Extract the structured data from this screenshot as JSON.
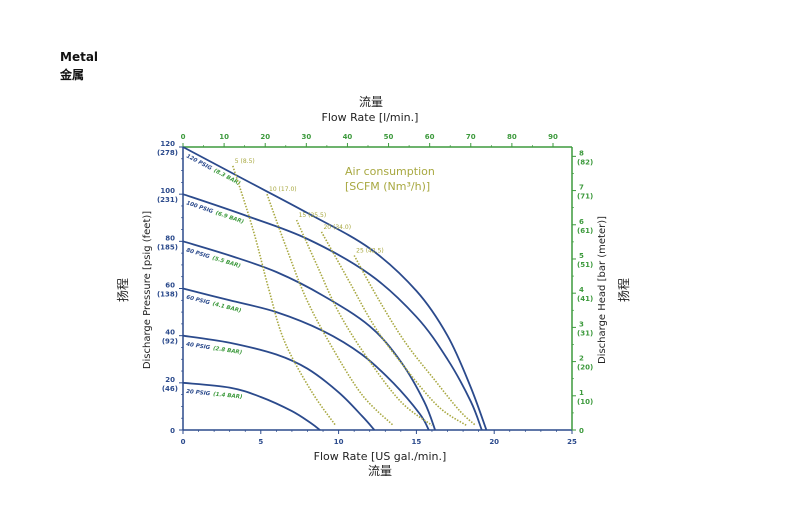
{
  "header": {
    "title_en": "Metal",
    "title_zh": "金属"
  },
  "chart_data": {
    "type": "line",
    "top_axis": {
      "cn_label": "流量",
      "label": "Flow Rate  [l/min.]",
      "ticks": [
        "0",
        "10",
        "20",
        "30",
        "40",
        "50",
        "60",
        "70",
        "80",
        "90"
      ],
      "tick_values": [
        0,
        10,
        20,
        30,
        40,
        50,
        60,
        70,
        80,
        90
      ],
      "color": "#3d9a3d"
    },
    "bottom_axis": {
      "label": "Flow Rate [US gal./min.]",
      "cn_label": "流量",
      "ticks": [
        "0",
        "5",
        "10",
        "15",
        "20",
        "25"
      ],
      "tick_values": [
        0,
        5,
        10,
        15,
        20,
        25
      ],
      "xlim": [
        0,
        25
      ]
    },
    "left_axis": {
      "label": "Discharge Pressure [psig (feet)]",
      "cn_label": "扬程",
      "ylim": [
        0,
        120
      ],
      "ticks": [
        {
          "value": 0,
          "main": "0",
          "sub": ""
        },
        {
          "value": 20,
          "main": "20",
          "sub": "(46)"
        },
        {
          "value": 40,
          "main": "40",
          "sub": "(92)"
        },
        {
          "value": 60,
          "main": "60",
          "sub": "(138)"
        },
        {
          "value": 80,
          "main": "80",
          "sub": "(185)"
        },
        {
          "value": 100,
          "main": "100",
          "sub": "(231)"
        },
        {
          "value": 120,
          "main": "120",
          "sub": "(278)"
        }
      ]
    },
    "right_axis": {
      "label": "Discharge Head [bar (meter)]",
      "cn_label": "扬程",
      "color": "#3d9a3d",
      "ticks": [
        {
          "value": 0,
          "main": "0",
          "sub": ""
        },
        {
          "value": 1,
          "main": "1",
          "sub": "(10)"
        },
        {
          "value": 2,
          "main": "2",
          "sub": "(20)"
        },
        {
          "value": 3,
          "main": "3",
          "sub": "(31)"
        },
        {
          "value": 4,
          "main": "4",
          "sub": "(41)"
        },
        {
          "value": 5,
          "main": "5",
          "sub": "(51)"
        },
        {
          "value": 6,
          "main": "6",
          "sub": "(61)"
        },
        {
          "value": 7,
          "main": "7",
          "sub": "(71)"
        },
        {
          "value": 8,
          "main": "8",
          "sub": "(82)"
        }
      ]
    },
    "series": [
      {
        "name": "120 PSIG",
        "sub": "(8.3 BAR)",
        "x": [
          0,
          4,
          8,
          12,
          15,
          17,
          18.5,
          19.5
        ],
        "y": [
          120,
          106,
          92,
          77,
          59,
          40,
          18,
          0
        ]
      },
      {
        "name": "100 PSIG",
        "sub": "(6.9 BAR)",
        "x": [
          0,
          4,
          8,
          12,
          15,
          17,
          18.5,
          19.2
        ],
        "y": [
          100,
          91,
          81,
          66,
          48,
          30,
          12,
          0
        ]
      },
      {
        "name": "80 PSIG",
        "sub": "(5.5 BAR)",
        "x": [
          0,
          3,
          6,
          9,
          12,
          14,
          15.5,
          16.2
        ],
        "y": [
          80,
          74,
          67,
          57,
          44,
          29,
          12,
          0
        ]
      },
      {
        "name": "60 PSIG",
        "sub": "(4.1 BAR)",
        "x": [
          0,
          3,
          6,
          9,
          11.5,
          13.5,
          15.2,
          15.8
        ],
        "y": [
          60,
          55,
          50,
          42,
          32,
          20,
          7,
          0
        ]
      },
      {
        "name": "40 PSIG",
        "sub": "(2.8 BAR)",
        "x": [
          0,
          3,
          6,
          8,
          10,
          11.5,
          12.3
        ],
        "y": [
          40,
          37,
          32,
          26,
          16,
          6,
          0
        ]
      },
      {
        "name": "20 PSIG",
        "sub": "(1.4 BAR)",
        "x": [
          0,
          3,
          5,
          7,
          8.2,
          8.8
        ],
        "y": [
          20,
          18,
          14,
          8,
          3,
          0
        ]
      }
    ],
    "air_consumption": {
      "label_line1": "Air consumption",
      "label_line2": "[SCFM (Nm³/h)]",
      "color": "#a8a840",
      "curves": [
        {
          "label": "5 (8.5)",
          "x": [
            3.2,
            4.5,
            5.5,
            6.5,
            8.2,
            9.8
          ],
          "y": [
            112,
            85,
            60,
            38,
            17,
            2
          ]
        },
        {
          "label": "10 (17.0)",
          "x": [
            5.4,
            6.6,
            7.9,
            9.5,
            11.5,
            13.5
          ],
          "y": [
            100,
            78,
            56,
            36,
            15,
            2
          ]
        },
        {
          "label": "15 (25.5)",
          "x": [
            7.3,
            8.6,
            10.0,
            11.8,
            14.0,
            16.0
          ],
          "y": [
            89,
            70,
            50,
            31,
            12,
            2
          ]
        },
        {
          "label": "20 (34.0)",
          "x": [
            8.9,
            10.6,
            12.3,
            14.2,
            16.4,
            18.2
          ],
          "y": [
            84,
            64,
            44,
            27,
            10,
            2
          ]
        },
        {
          "label": "25 (42.5)",
          "x": [
            11.0,
            12.6,
            14.3,
            16.2,
            17.8,
            18.8
          ],
          "y": [
            74,
            55,
            37,
            21,
            8,
            2
          ]
        }
      ]
    },
    "colors": {
      "pump_curve": "#2b4a8c",
      "axis_left": "#2b4a8c",
      "axis_green": "#3d9a3d",
      "air_curve": "#a8a840"
    }
  }
}
